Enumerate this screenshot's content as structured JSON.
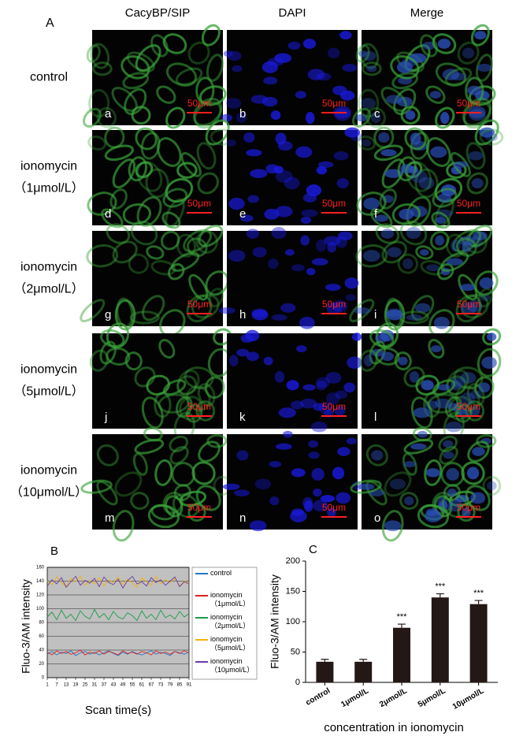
{
  "panel_A": {
    "label": "A",
    "column_headers": [
      "CacyBP/SIP",
      "DAPI",
      "Merge"
    ],
    "row_labels": [
      [
        "control"
      ],
      [
        "ionomycin",
        "（1μmol/L）"
      ],
      [
        "ionomycin",
        "（2μmol/L）"
      ],
      [
        "ionomycin",
        "（5μmol/L）"
      ],
      [
        "ionomycin",
        "（10μmol/L）"
      ]
    ],
    "panel_letters": [
      "a",
      "b",
      "c",
      "d",
      "e",
      "f",
      "g",
      "h",
      "i",
      "j",
      "k",
      "l",
      "m",
      "n",
      "o"
    ],
    "scale_bar_label": "50μm"
  },
  "chart_data": [
    {
      "type": "line",
      "label": "B",
      "x_label": "Scan time(s)",
      "y_label": "Fluo-3/AM intensity",
      "x": [
        1,
        4,
        7,
        10,
        13,
        16,
        19,
        22,
        25,
        28,
        31,
        34,
        37,
        40,
        43,
        46,
        49,
        52,
        55,
        58,
        61,
        64,
        67,
        70,
        73,
        76,
        79,
        82,
        85,
        88,
        91
      ],
      "xlim": [
        1,
        91
      ],
      "xticks": [
        1,
        7,
        13,
        19,
        25,
        31,
        37,
        43,
        49,
        55,
        61,
        67,
        73,
        79,
        85,
        91
      ],
      "ylim": [
        0,
        160
      ],
      "yticks": [
        0,
        20,
        40,
        60,
        80,
        100,
        120,
        140,
        160
      ],
      "grid": true,
      "background": "#c0c0c0",
      "series": [
        {
          "name": "control",
          "color": "#1f77c8",
          "values": [
            34,
            38,
            33,
            37,
            35,
            39,
            32,
            36,
            38,
            34,
            37,
            33,
            36,
            39,
            35,
            32,
            37,
            34,
            38,
            35,
            33,
            36,
            39,
            34,
            37,
            35,
            32,
            38,
            36,
            34,
            37
          ]
        },
        {
          "name": "ionomycin（1μmol/L）",
          "color": "#e02020",
          "values": [
            37,
            33,
            39,
            35,
            38,
            34,
            36,
            40,
            33,
            37,
            35,
            39,
            34,
            38,
            36,
            33,
            39,
            35,
            37,
            34,
            38,
            36,
            33,
            39,
            35,
            37,
            34,
            38,
            35,
            39,
            36
          ]
        },
        {
          "name": "ionomycin（2μmol/L）",
          "color": "#1a9a4a",
          "values": [
            88,
            95,
            84,
            98,
            86,
            92,
            83,
            97,
            89,
            85,
            99,
            87,
            93,
            84,
            96,
            88,
            85,
            94,
            90,
            83,
            97,
            86,
            92,
            84,
            98,
            87,
            91,
            85,
            96,
            88,
            93
          ]
        },
        {
          "name": "ionomycin（5μmol/L）",
          "color": "#f0b400",
          "values": [
            140,
            135,
            146,
            138,
            132,
            144,
            139,
            147,
            134,
            141,
            136,
            145,
            133,
            142,
            138,
            146,
            135,
            143,
            137,
            131,
            145,
            139,
            134,
            147,
            136,
            142,
            138,
            144,
            133,
            140,
            137
          ]
        },
        {
          "name": "ionomycin（10μmol/L）",
          "color": "#6a3aa8",
          "values": [
            133,
            142,
            136,
            145,
            131,
            139,
            147,
            134,
            141,
            137,
            144,
            132,
            146,
            138,
            135,
            143,
            130,
            141,
            147,
            136,
            139,
            133,
            145,
            138,
            142,
            134,
            140,
            146,
            132,
            139,
            136
          ]
        }
      ]
    },
    {
      "type": "bar",
      "label": "C",
      "x_label": "concentration in ionomycin",
      "y_label": "Fluo-3/AM intensity",
      "categories": [
        "control",
        "1μmol/L",
        "2μmol/L",
        "5μmol/L",
        "10μmol/L"
      ],
      "values": [
        34,
        34,
        90,
        140,
        129
      ],
      "errors": [
        4,
        4,
        6,
        6,
        6
      ],
      "significance": [
        null,
        null,
        "***",
        "***",
        "***"
      ],
      "color": "#231815",
      "ylim": [
        0,
        200
      ],
      "yticks": [
        0,
        50,
        100,
        150,
        200
      ]
    }
  ]
}
